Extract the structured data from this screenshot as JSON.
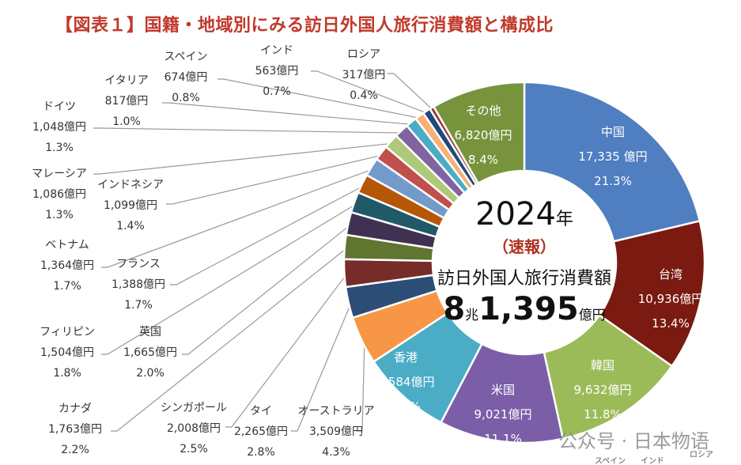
{
  "title": "【図表１】国籍・地域別にみる訪日外国人旅行消費額と構成比",
  "center": {
    "year": "2024",
    "year_suffix": "年",
    "flash": "（速報）",
    "label": "訪日外国人旅行消費額",
    "total_a": "8",
    "total_a_unit": "兆",
    "total_b": "1,395",
    "total_b_unit": "億円"
  },
  "watermark": "公众号 · 日本物语",
  "cut_off_text": [
    "スペイン",
    "インド",
    "ロシア"
  ],
  "chart_data": {
    "type": "pie",
    "donut": true,
    "unit": "億円",
    "slices": [
      {
        "name": "中国",
        "value": 17335,
        "value_label": "17,335 億円",
        "pct": "21.3%",
        "color": "#4f7ec1"
      },
      {
        "name": "台湾",
        "value": 10936,
        "value_label": "10,936億円",
        "pct": "13.4%",
        "color": "#7a1a10"
      },
      {
        "name": "韓国",
        "value": 9632,
        "value_label": "9,632億円",
        "pct": "11.8%",
        "color": "#9bbb59"
      },
      {
        "name": "米国",
        "value": 9021,
        "value_label": "9,021億円",
        "pct": "11.1%",
        "color": "#7b5ea7"
      },
      {
        "name": "香港",
        "value": 6584,
        "value_label": "6,584億円",
        "pct": "8.1%",
        "color": "#4bacc6"
      },
      {
        "name": "オーストラリア",
        "value": 3509,
        "value_label": "3,509億円",
        "pct": "4.3%",
        "color": "#f79646"
      },
      {
        "name": "タイ",
        "value": 2265,
        "value_label": "2,265億円",
        "pct": "2.8%",
        "color": "#2c4d75"
      },
      {
        "name": "シンガポール",
        "value": 2008,
        "value_label": "2,008億円",
        "pct": "2.5%",
        "color": "#772c2a"
      },
      {
        "name": "カナダ",
        "value": 1763,
        "value_label": "1,763億円",
        "pct": "2.2%",
        "color": "#5f7530"
      },
      {
        "name": "英国",
        "value": 1665,
        "value_label": "1,665億円",
        "pct": "2.0%",
        "color": "#403152"
      },
      {
        "name": "フィリピン",
        "value": 1504,
        "value_label": "1,504億円",
        "pct": "1.8%",
        "color": "#215968"
      },
      {
        "name": "フランス",
        "value": 1388,
        "value_label": "1,388億円",
        "pct": "1.7%",
        "color": "#b65708"
      },
      {
        "name": "ベトナム",
        "value": 1364,
        "value_label": "1,364億円",
        "pct": "1.7%",
        "color": "#729aca"
      },
      {
        "name": "インドネシア",
        "value": 1099,
        "value_label": "1,099億円",
        "pct": "1.4%",
        "color": "#c0504d"
      },
      {
        "name": "マレーシア",
        "value": 1086,
        "value_label": "1,086億円",
        "pct": "1.3%",
        "color": "#afc97a"
      },
      {
        "name": "ドイツ",
        "value": 1048,
        "value_label": "1,048億円",
        "pct": "1.3%",
        "color": "#8064a2"
      },
      {
        "name": "イタリア",
        "value": 817,
        "value_label": "817億円",
        "pct": "1.0%",
        "color": "#4bacc6"
      },
      {
        "name": "スペイン",
        "value": 674,
        "value_label": "674億円",
        "pct": "0.8%",
        "color": "#f9b074"
      },
      {
        "name": "インド",
        "value": 563,
        "value_label": "563億円",
        "pct": "0.7%",
        "color": "#1f497d"
      },
      {
        "name": "ロシア",
        "value": 317,
        "value_label": "317億円",
        "pct": "0.4%",
        "color": "#953735"
      },
      {
        "name": "その他",
        "value": 6820,
        "value_label": "6,820億円",
        "pct": "8.4%",
        "color": "#77933c"
      }
    ]
  }
}
